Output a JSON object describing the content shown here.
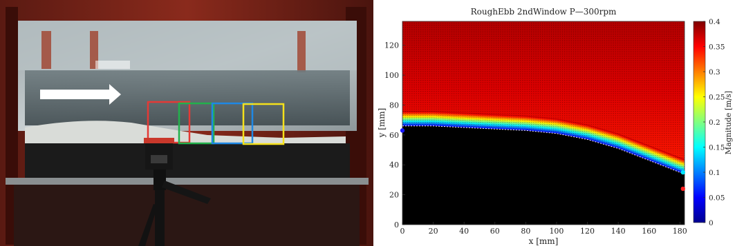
{
  "photo": {
    "description_icon": "flow-tank-photo",
    "arrow_color": "#ffffff",
    "box_colors": [
      "#e53935",
      "#22b14c",
      "#1e88e5",
      "#f5e11b"
    ]
  },
  "chart_data": {
    "type": "heatmap",
    "title": "RoughEbb 2ndWindow P—300rpm",
    "xlabel": "x [mm]",
    "ylabel": "y [mm]",
    "colorbar_label": "Magnitude [m/s]",
    "xlim": [
      0,
      183
    ],
    "ylim": [
      0,
      136
    ],
    "clim": [
      0,
      0.4
    ],
    "x_ticks": [
      "0",
      "20",
      "40",
      "60",
      "80",
      "100",
      "120",
      "140",
      "160",
      "180"
    ],
    "y_ticks": [
      "0",
      "20",
      "40",
      "60",
      "80",
      "100",
      "120"
    ],
    "colorbar_ticks": [
      "0",
      "0.05",
      "0.1",
      "0.15",
      "0.2",
      "0.25",
      "0.3",
      "0.35",
      "0.4"
    ],
    "colormap": "jet",
    "masked_color": "#000000",
    "bed_profile": {
      "x": [
        0,
        5,
        10,
        20,
        30,
        40,
        50,
        60,
        70,
        80,
        90,
        100,
        110,
        120,
        130,
        140,
        150,
        160,
        170,
        180,
        183
      ],
      "y": [
        66,
        66,
        66,
        66,
        65.5,
        65,
        64.5,
        64,
        63.5,
        63,
        62,
        61,
        59,
        57,
        54,
        51,
        47,
        43,
        39,
        35,
        34
      ]
    },
    "boundary_layer_thickness_mm": 10,
    "freestream_magnitude": 0.38,
    "markers": [
      {
        "x": 0,
        "y": 63,
        "color": "#1a1aff"
      },
      {
        "x": 182,
        "y": 35,
        "color": "#00e5ff"
      },
      {
        "x": 182,
        "y": 24,
        "color": "#ff2020"
      }
    ]
  }
}
